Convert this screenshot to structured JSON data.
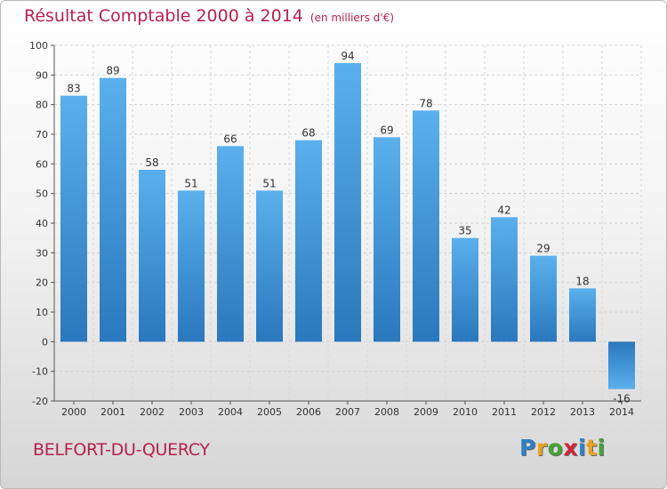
{
  "title": "Résultat Comptable 2000 à 2014",
  "subtitle": "(en milliers d'€)",
  "place": "BELFORT-DU-QUERCY",
  "logo": {
    "letters": [
      "P",
      "r",
      "o",
      "x",
      "i",
      "t",
      "i"
    ],
    "colors": [
      "#2f7fc8",
      "#e8a21e",
      "#43a535",
      "#d0263a",
      "#2f7fc8",
      "#e8a21e",
      "#43a535"
    ]
  },
  "colors": {
    "bar": "#4a9ee0",
    "bar_dark": "#2a73b5",
    "title": "#b8204f"
  },
  "chart_data": {
    "type": "bar",
    "title": "Résultat Comptable 2000 à 2014",
    "xlabel": "",
    "ylabel": "",
    "ylim": [
      -20,
      100
    ],
    "yticks": [
      -20,
      -10,
      0,
      10,
      20,
      30,
      40,
      50,
      60,
      70,
      80,
      90,
      100
    ],
    "grid": true,
    "categories": [
      "2000",
      "2001",
      "2002",
      "2003",
      "2004",
      "2005",
      "2006",
      "2007",
      "2008",
      "2009",
      "2010",
      "2011",
      "2012",
      "2013",
      "2014"
    ],
    "values": [
      83,
      89,
      58,
      51,
      66,
      51,
      68,
      94,
      69,
      78,
      35,
      42,
      29,
      18,
      -16
    ]
  }
}
